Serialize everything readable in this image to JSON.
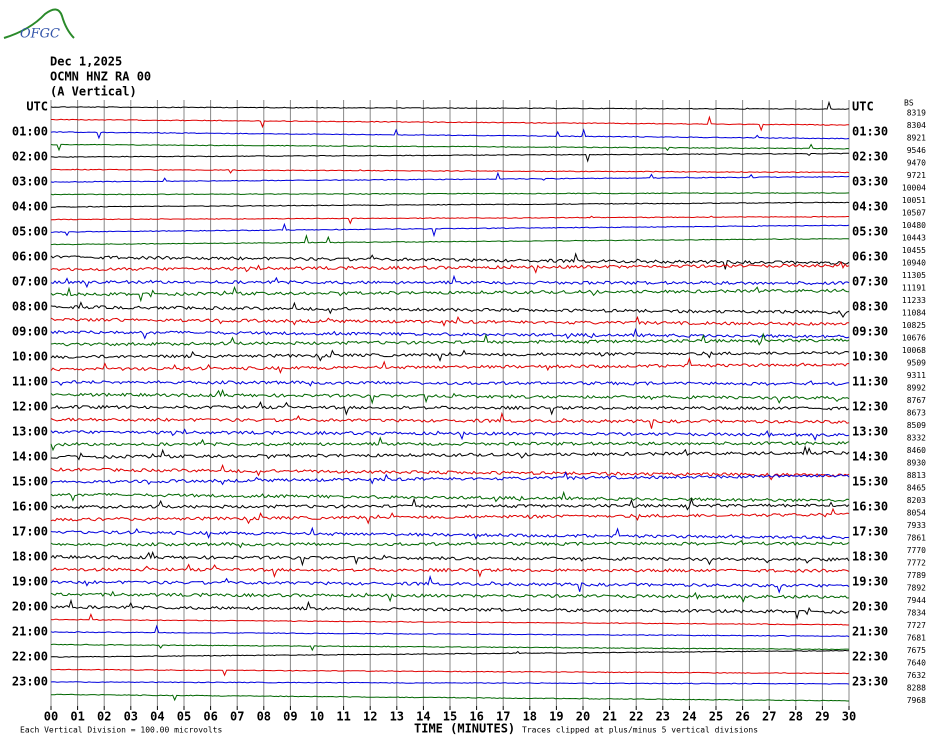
{
  "header": {
    "logo": "OFGC",
    "date": "Dec 1,2025",
    "station": "OCMN HNZ RA 00",
    "component": "(A Vertical)"
  },
  "left_labels": [
    "UTC",
    "01:00",
    "02:00",
    "03:00",
    "04:00",
    "05:00",
    "06:00",
    "07:00",
    "08:00",
    "09:00",
    "10:00",
    "11:00",
    "12:00",
    "13:00",
    "14:00",
    "15:00",
    "16:00",
    "17:00",
    "18:00",
    "19:00",
    "20:00",
    "21:00",
    "22:00",
    "23:00"
  ],
  "right_labels": [
    "UTC",
    "01:30",
    "02:30",
    "03:30",
    "04:30",
    "05:30",
    "06:30",
    "07:30",
    "08:30",
    "09:30",
    "10:30",
    "11:30",
    "12:30",
    "13:30",
    "14:30",
    "15:30",
    "16:30",
    "17:30",
    "18:30",
    "19:30",
    "20:30",
    "21:30",
    "22:30",
    "23:30"
  ],
  "right_header": "BS",
  "trace_values": [
    8319,
    8304,
    8921,
    9546,
    9470,
    9721,
    10004,
    10051,
    10507,
    10480,
    10443,
    10455,
    10940,
    11305,
    11191,
    11233,
    11084,
    10825,
    10676,
    10068,
    9509,
    9311,
    8992,
    8767,
    8673,
    8509,
    8332,
    8460,
    8930,
    8813,
    8465,
    8203,
    8054,
    7933,
    7861,
    7770,
    7772,
    7789,
    7892,
    7944,
    7834,
    7727,
    7681,
    7675,
    7640,
    7632,
    8288,
    7968
  ],
  "x_ticks": [
    "00",
    "01",
    "02",
    "03",
    "04",
    "05",
    "06",
    "07",
    "08",
    "09",
    "10",
    "11",
    "12",
    "13",
    "14",
    "15",
    "16",
    "17",
    "18",
    "19",
    "20",
    "21",
    "22",
    "23",
    "24",
    "25",
    "26",
    "27",
    "28",
    "29",
    "30"
  ],
  "footer": {
    "scale": "Each Vertical Division =  100.00 microvolts",
    "axis_title": "TIME (MINUTES)",
    "clip_note": "Traces clipped at plus/minus 5 vertical divisions"
  }
}
